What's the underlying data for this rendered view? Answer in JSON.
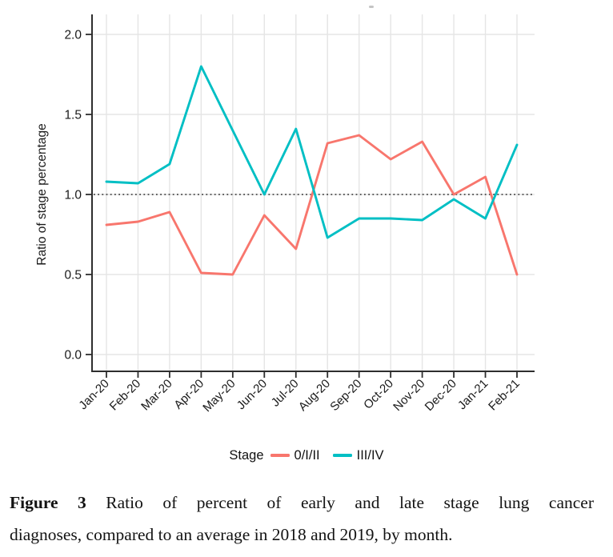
{
  "chart_data": {
    "type": "line",
    "title": "",
    "xlabel": "",
    "ylabel": "Ratio of stage percentage",
    "x": [
      "Jan-20",
      "Feb-20",
      "Mar-20",
      "Apr-20",
      "May-20",
      "Jun-20",
      "Jul-20",
      "Aug-20",
      "Sep-20",
      "Oct-20",
      "Nov-20",
      "Dec-20",
      "Jan-21",
      "Feb-21"
    ],
    "yticks": [
      0,
      0.5,
      1,
      1.5,
      2
    ],
    "ytick_labels": [
      "0.0",
      "0.5",
      "1.0",
      "1.5",
      "2.0"
    ],
    "ylim": [
      0,
      2.05
    ],
    "grid": true,
    "reference_line_y": 1.0,
    "legend_position": "bottom",
    "series": [
      {
        "name": "0/I/II",
        "color": "#F8766D",
        "values": [
          0.81,
          0.83,
          0.89,
          0.51,
          0.5,
          0.87,
          0.66,
          1.32,
          1.37,
          1.22,
          1.33,
          1.0,
          1.11,
          0.5
        ]
      },
      {
        "name": "III/IV",
        "color": "#00BFC4",
        "values": [
          1.08,
          1.07,
          1.19,
          1.8,
          1.4,
          1.0,
          1.41,
          0.73,
          0.85,
          0.85,
          0.84,
          0.97,
          0.85,
          1.31
        ]
      }
    ]
  },
  "legend": {
    "title": "Stage",
    "items": [
      {
        "label": "0/I/II",
        "color": "#F8766D"
      },
      {
        "label": "III/IV",
        "color": "#00BFC4"
      }
    ]
  },
  "caption": {
    "label": "Figure 3",
    "line1_rest": "Ratio of percent of early and late stage lung cancer",
    "line2": "diagnoses, compared to an average in 2018 and 2019, by month."
  },
  "colors": {
    "grid": "#e5e5e5",
    "axis": "#2e2e2e",
    "reference_line": "#4a4a4a",
    "tick_text": "#1a1a1a"
  }
}
